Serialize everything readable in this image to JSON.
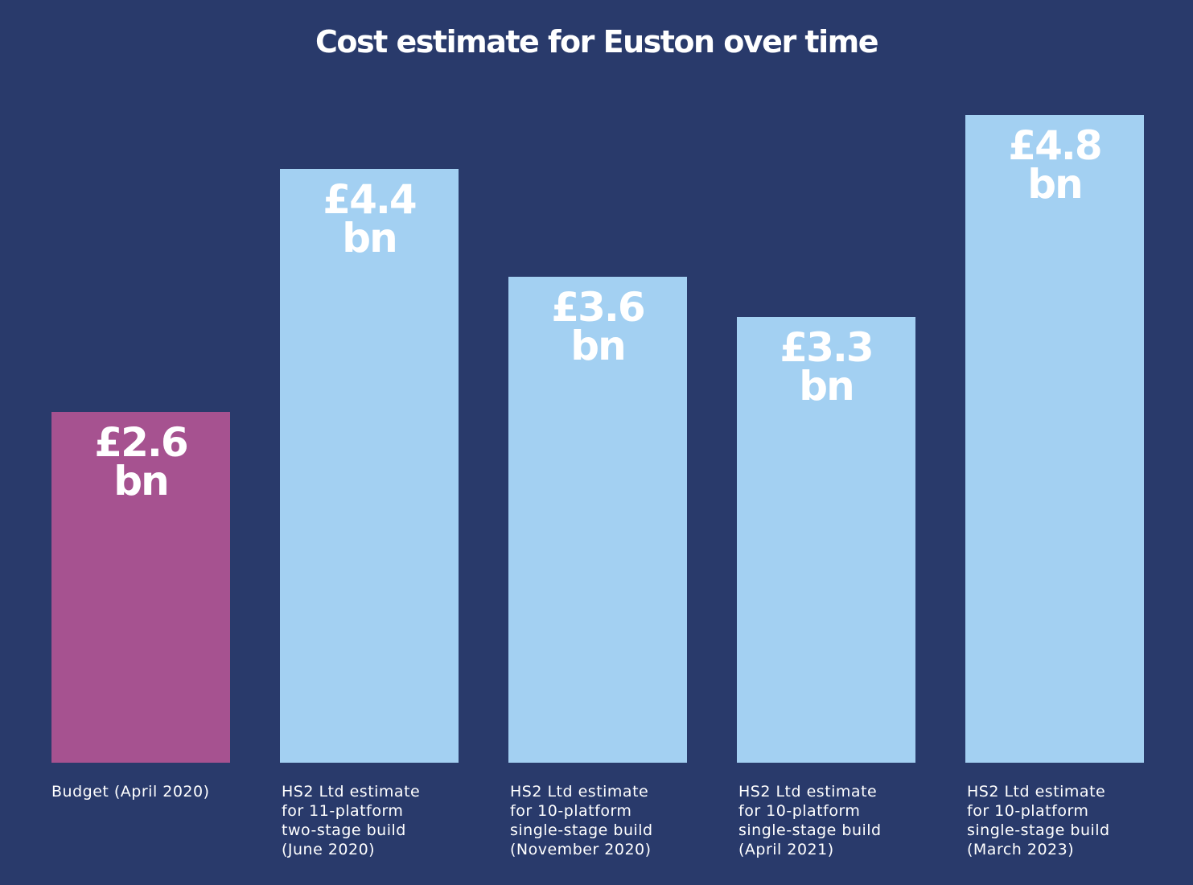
{
  "chart_data": {
    "type": "bar",
    "title": "Cost estimate for Euston over time",
    "categories": [
      [
        "Budget (April 2020)"
      ],
      [
        "HS2 Ltd estimate",
        "for 11-platform",
        "two-stage build",
        "(June 2020)"
      ],
      [
        "HS2 Ltd estimate",
        "for 10-platform",
        "single-stage build",
        "(November 2020)"
      ],
      [
        "HS2 Ltd estimate",
        "for 10-platform",
        "single-stage build",
        "(April 2021)"
      ],
      [
        "HS2 Ltd estimate",
        "for 10-platform",
        "single-stage build",
        "(March 2023)"
      ]
    ],
    "values": [
      2.6,
      4.4,
      3.6,
      3.3,
      4.8
    ],
    "unit": "£bn",
    "data_labels": [
      [
        "£2.6",
        "bn"
      ],
      [
        "£4.4",
        "bn"
      ],
      [
        "£3.6",
        "bn"
      ],
      [
        "£3.3",
        "bn"
      ],
      [
        "£4.8",
        "bn"
      ]
    ],
    "ylim": [
      0,
      5.0
    ],
    "grid": false,
    "colors": {
      "background": "#293a6b",
      "budget": "#a65290",
      "estimate": "#a3d0f2",
      "text": "#ffffff"
    },
    "bar_colors": [
      "#a65290",
      "#a3d0f2",
      "#a3d0f2",
      "#a3d0f2",
      "#a3d0f2"
    ]
  }
}
